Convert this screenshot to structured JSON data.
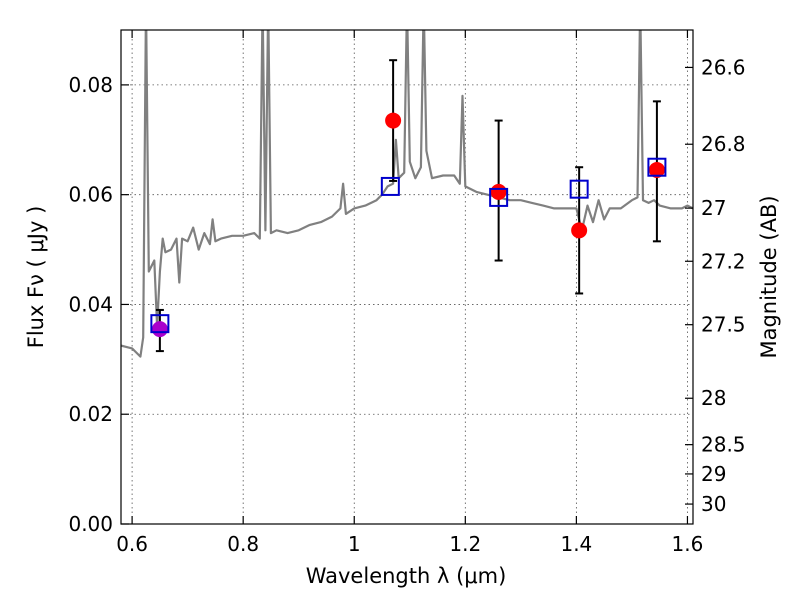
{
  "chart_data": {
    "type": "scatter",
    "xlabel": "Wavelength  λ (μm)",
    "ylabel": "Flux  Fν  ( μJy )",
    "ylabel_right": "Magnitude (AB)",
    "xlim": [
      0.58,
      1.61
    ],
    "ylim": [
      0.0,
      0.09
    ],
    "x_ticks": [
      0.6,
      0.8,
      1.0,
      1.2,
      1.4,
      1.6
    ],
    "x_tick_labels": [
      "0.6",
      "0.8",
      "1",
      "1.2",
      "1.4",
      "1.6"
    ],
    "y_ticks": [
      0.0,
      0.02,
      0.04,
      0.06,
      0.08
    ],
    "y_tick_labels": [
      "0.00",
      "0.02",
      "0.04",
      "0.06",
      "0.08"
    ],
    "right_ticks": [
      26.6,
      26.8,
      27,
      27.2,
      27.5,
      28,
      28.5,
      29,
      30
    ],
    "right_tick_labels": [
      "26.6",
      "26.8",
      "27",
      "27.2",
      "27.5",
      "28",
      "28.5",
      "29",
      "30"
    ],
    "grid": true,
    "colors": {
      "model": "#808080",
      "observed": "#ff0000",
      "observed_first": "#aa00cc",
      "model_box": "#0000cc",
      "errorbar": "#000000"
    },
    "model_spectrum": {
      "x": [
        0.58,
        0.6,
        0.615,
        0.62,
        0.625,
        0.63,
        0.64,
        0.645,
        0.65,
        0.655,
        0.66,
        0.67,
        0.68,
        0.685,
        0.69,
        0.7,
        0.71,
        0.72,
        0.73,
        0.74,
        0.745,
        0.75,
        0.76,
        0.78,
        0.8,
        0.82,
        0.83,
        0.835,
        0.84,
        0.845,
        0.85,
        0.86,
        0.88,
        0.9,
        0.92,
        0.94,
        0.96,
        0.975,
        0.98,
        0.985,
        1.0,
        1.02,
        1.04,
        1.05,
        1.06,
        1.07,
        1.075,
        1.08,
        1.09,
        1.095,
        1.1,
        1.11,
        1.12,
        1.125,
        1.13,
        1.14,
        1.16,
        1.18,
        1.19,
        1.195,
        1.2,
        1.22,
        1.24,
        1.26,
        1.28,
        1.3,
        1.32,
        1.34,
        1.36,
        1.38,
        1.4,
        1.41,
        1.42,
        1.43,
        1.44,
        1.45,
        1.46,
        1.48,
        1.5,
        1.51,
        1.515,
        1.52,
        1.53,
        1.54,
        1.55,
        1.57,
        1.59,
        1.6,
        1.61
      ],
      "y": [
        0.0325,
        0.032,
        0.0305,
        0.034,
        0.095,
        0.046,
        0.048,
        0.036,
        0.046,
        0.052,
        0.0495,
        0.05,
        0.052,
        0.044,
        0.052,
        0.0515,
        0.054,
        0.05,
        0.053,
        0.051,
        0.0555,
        0.0515,
        0.052,
        0.0525,
        0.0525,
        0.053,
        0.052,
        0.095,
        0.0535,
        0.095,
        0.053,
        0.0535,
        0.053,
        0.0535,
        0.0545,
        0.055,
        0.056,
        0.0575,
        0.062,
        0.0565,
        0.0575,
        0.058,
        0.059,
        0.06,
        0.0615,
        0.062,
        0.07,
        0.063,
        0.064,
        0.095,
        0.066,
        0.063,
        0.065,
        0.095,
        0.068,
        0.063,
        0.0635,
        0.0635,
        0.062,
        0.078,
        0.0615,
        0.0605,
        0.06,
        0.0595,
        0.059,
        0.059,
        0.0585,
        0.058,
        0.0575,
        0.0575,
        0.0575,
        0.0535,
        0.058,
        0.055,
        0.059,
        0.0555,
        0.0575,
        0.0575,
        0.059,
        0.0595,
        0.095,
        0.059,
        0.0585,
        0.059,
        0.058,
        0.0575,
        0.0575,
        0.058,
        0.0575
      ]
    },
    "observed": [
      {
        "x": 0.65,
        "y": 0.0355,
        "err_low": 0.0315,
        "err_high": 0.039
      },
      {
        "x": 1.07,
        "y": 0.0735,
        "err_low": 0.0625,
        "err_high": 0.0845
      },
      {
        "x": 1.26,
        "y": 0.0605,
        "err_low": 0.048,
        "err_high": 0.0735
      },
      {
        "x": 1.405,
        "y": 0.0535,
        "err_low": 0.042,
        "err_high": 0.065
      },
      {
        "x": 1.545,
        "y": 0.0645,
        "err_low": 0.0515,
        "err_high": 0.077
      }
    ],
    "model_points": [
      {
        "x": 0.65,
        "y": 0.0365
      },
      {
        "x": 1.065,
        "y": 0.0615
      },
      {
        "x": 1.26,
        "y": 0.0595
      },
      {
        "x": 1.405,
        "y": 0.061
      },
      {
        "x": 1.545,
        "y": 0.065
      }
    ]
  }
}
